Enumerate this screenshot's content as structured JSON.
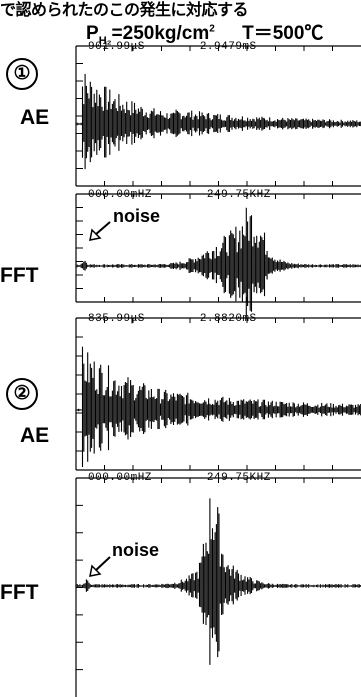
{
  "top_text": "で認められたのこの発生に対応する",
  "title": {
    "p_label": "P",
    "p_sub": "H₂",
    "p_value": "=250kg/cm",
    "p_sup": "2",
    "temp": "T＝500℃"
  },
  "panels": [
    {
      "number": "①",
      "label": "AE",
      "header_left": "901.99μS",
      "header_right": "2.9479mS"
    },
    {
      "label": "FFT",
      "header_left": "000.00mHZ",
      "header_right": "249.75KHZ",
      "annotation": "noise"
    },
    {
      "number": "②",
      "label": "AE",
      "header_left": "835.99μS",
      "header_right": "2.8820mS"
    },
    {
      "label": "FFT",
      "header_left": "000.00mHZ",
      "header_right": "249.75KHZ",
      "annotation": "noise"
    }
  ]
}
